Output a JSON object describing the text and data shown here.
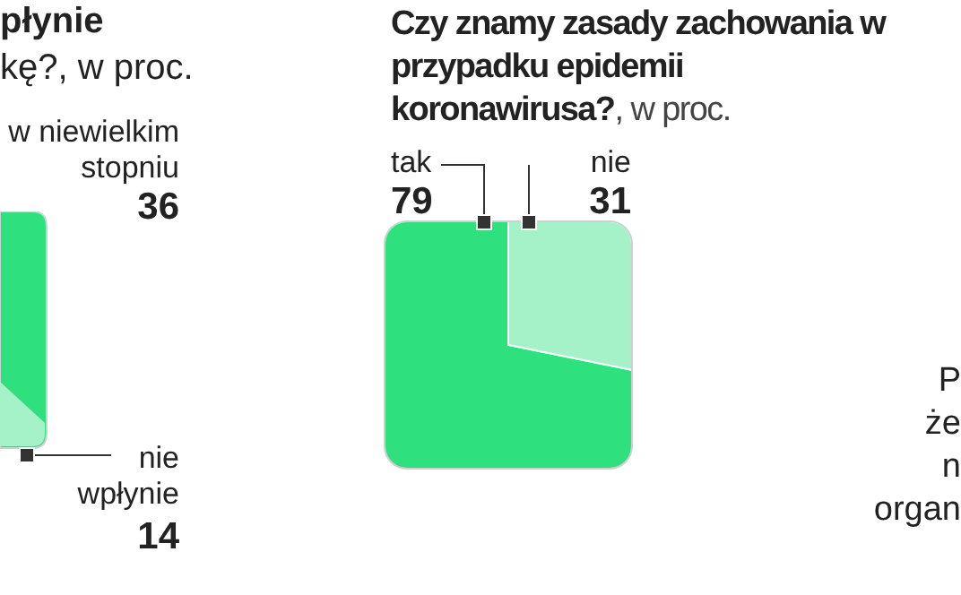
{
  "chart_data": {
    "type": "pie",
    "title": "Czy znamy zasady zachowania w przypadku epidemii koronawirusa?",
    "subtitle": ", w proc.",
    "categories": [
      "tak",
      "nie"
    ],
    "values": [
      79,
      31
    ],
    "colors": [
      "#2ee07e",
      "#a6f2c8"
    ],
    "data_labels": true,
    "annotations": [
      "płynie",
      "kę?, w proc.",
      "w niewielkim stopniu",
      "36",
      "nie wpłynie",
      "14",
      "P",
      "że",
      "n",
      "organ"
    ]
  }
}
